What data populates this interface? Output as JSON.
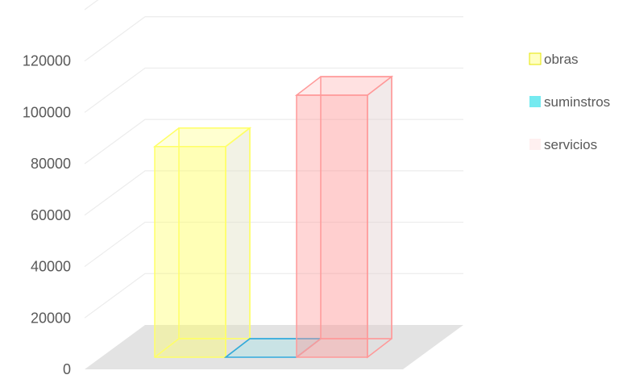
{
  "chart_data": {
    "type": "bar",
    "categories": [
      ""
    ],
    "series": [
      {
        "name": "obras",
        "values": [
          82000
        ],
        "color": "#ffff66"
      },
      {
        "name": "suminstros",
        "values": [
          0
        ],
        "color": "#66e8ee"
      },
      {
        "name": "servicios",
        "values": [
          102000
        ],
        "color": "#ff9999"
      }
    ],
    "ylim": [
      0,
      140000
    ],
    "yticks": [
      0,
      20000,
      40000,
      60000,
      80000,
      100000,
      120000
    ],
    "ytick_labels": [
      "0",
      "20000",
      "40000",
      "60000",
      "80000",
      "100000",
      "120000"
    ],
    "grid": true,
    "legend": "right",
    "style": "3d-column"
  }
}
